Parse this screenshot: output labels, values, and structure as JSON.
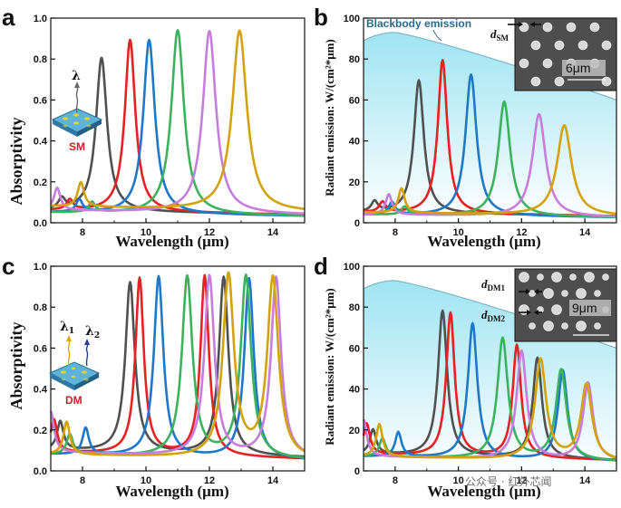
{
  "colors": {
    "series": [
      "#505050",
      "#e52222",
      "#1f77c8",
      "#3bb35c",
      "#c77ddb",
      "#d4a20d"
    ],
    "blackbody_fill": "#bfeef7",
    "blackbody_line": "#7fb6c8"
  },
  "annotations": {
    "blackbody_label": "Blackbody emission",
    "sm_label": "SM",
    "dm_label": "DM",
    "lambda": "λ",
    "lambda1": "λ",
    "lambda1_sub": "1",
    "lambda2": "λ",
    "lambda2_sub": "2",
    "scale_b": "6μm",
    "scale_d": "9μm",
    "d_sm": "d",
    "d_sm_sub": "SM",
    "d_dm1": "d",
    "d_dm1_sub": "DM1",
    "d_dm2": "d",
    "d_dm2_sub": "DM2",
    "watermark": "公众号 · 红外芯闻"
  },
  "chart_data": [
    {
      "id": "a",
      "panel_label": "a",
      "type": "line",
      "xlabel": "Wavelength (μm)",
      "ylabel": "Absorptivity",
      "xlim": [
        7,
        15
      ],
      "ylim": [
        0,
        1.0
      ],
      "xticks": [
        8,
        10,
        12,
        14
      ],
      "yticks": [
        0.0,
        0.2,
        0.4,
        0.6,
        0.8,
        1.0
      ],
      "ytick_labels": [
        "0.0",
        "0.2",
        "0.4",
        "0.6",
        "0.8",
        "1.0"
      ],
      "series": [
        {
          "color": "#505050",
          "peak": 8.6,
          "amp": 0.81,
          "width": 0.42,
          "baseline": 0.06,
          "side_peak": 7.35,
          "side_amp": 0.05
        },
        {
          "color": "#e52222",
          "peak": 9.5,
          "amp": 0.9,
          "width": 0.4,
          "baseline": 0.06,
          "side_peak": 7.6,
          "side_amp": 0.05
        },
        {
          "color": "#1f77c8",
          "peak": 10.1,
          "amp": 0.9,
          "width": 0.44,
          "baseline": 0.05,
          "side_peak": 7.9,
          "side_amp": 0.06
        },
        {
          "color": "#3bb35c",
          "peak": 11.0,
          "amp": 0.95,
          "width": 0.48,
          "baseline": 0.05,
          "side_peak": 8.3,
          "side_amp": 0.05
        },
        {
          "color": "#c77ddb",
          "peak": 12.0,
          "amp": 0.95,
          "width": 0.5,
          "baseline": 0.06,
          "side_peak": 7.2,
          "side_amp": 0.11
        },
        {
          "color": "#d4a20d",
          "peak": 12.95,
          "amp": 0.96,
          "width": 0.55,
          "baseline": 0.08,
          "side_peak": 7.95,
          "side_amp": 0.12
        }
      ]
    },
    {
      "id": "b",
      "panel_label": "b",
      "type": "line",
      "xlabel": "Wavelength (μm)",
      "ylabel": "Radiant emission: W/(cm²*μm)",
      "xlim": [
        7,
        15
      ],
      "ylim": [
        0,
        100
      ],
      "xticks": [
        8,
        10,
        12,
        14
      ],
      "yticks": [
        0,
        20,
        40,
        60,
        80,
        100
      ],
      "ytick_labels": [
        "0",
        "20",
        "40",
        "60",
        "80",
        "100"
      ],
      "blackbody": {
        "peak_wavelength": 8.0,
        "peak_value": 93,
        "end_value": 60
      },
      "series": [
        {
          "color": "#505050",
          "peak": 8.75,
          "amp": 70,
          "width": 0.38,
          "baseline": 5,
          "side_peak": 7.35,
          "side_amp": 5
        },
        {
          "color": "#e52222",
          "peak": 9.5,
          "amp": 80,
          "width": 0.36,
          "baseline": 5,
          "side_peak": 7.6,
          "side_amp": 5
        },
        {
          "color": "#1f77c8",
          "peak": 10.4,
          "amp": 73,
          "width": 0.42,
          "baseline": 4,
          "side_peak": 7.9,
          "side_amp": 6
        },
        {
          "color": "#3bb35c",
          "peak": 11.45,
          "amp": 60,
          "width": 0.45,
          "baseline": 4,
          "side_peak": 8.3,
          "side_amp": 4
        },
        {
          "color": "#c77ddb",
          "peak": 12.55,
          "amp": 54,
          "width": 0.5,
          "baseline": 4,
          "side_peak": 7.8,
          "side_amp": 10
        },
        {
          "color": "#d4a20d",
          "peak": 13.35,
          "amp": 49,
          "width": 0.55,
          "baseline": 5,
          "side_peak": 8.2,
          "side_amp": 12
        }
      ]
    },
    {
      "id": "c",
      "panel_label": "c",
      "type": "line",
      "xlabel": "Wavelength (μm)",
      "ylabel": "Absorptivity",
      "xlim": [
        7,
        15
      ],
      "ylim": [
        0,
        1.0
      ],
      "xticks": [
        8,
        10,
        12,
        14
      ],
      "yticks": [
        0.0,
        0.2,
        0.4,
        0.6,
        0.8,
        1.0
      ],
      "ytick_labels": [
        "0.0",
        "0.2",
        "0.4",
        "0.6",
        "0.8",
        "1.0"
      ],
      "series": [
        {
          "color": "#505050",
          "peaks": [
            9.5,
            12.45
          ],
          "amps": [
            0.93,
            0.97
          ],
          "width": 0.36,
          "baseline": 0.1,
          "side_peak": 7.3,
          "side_amp": 0.14
        },
        {
          "color": "#e52222",
          "peaks": [
            9.8,
            11.85
          ],
          "amps": [
            0.95,
            0.97
          ],
          "width": 0.32,
          "baseline": 0.09,
          "side_peak": 7.1,
          "side_amp": 0.16
        },
        {
          "color": "#1f77c8",
          "peaks": [
            10.4,
            13.25
          ],
          "amps": [
            0.96,
            0.96
          ],
          "width": 0.36,
          "baseline": 0.08,
          "side_peak": 8.1,
          "side_amp": 0.13
        },
        {
          "color": "#3bb35c",
          "peaks": [
            11.3,
            13.15
          ],
          "amps": [
            0.96,
            0.97
          ],
          "width": 0.4,
          "baseline": 0.08,
          "side_peak": 7.6,
          "side_amp": 0.1
        },
        {
          "color": "#c77ddb",
          "peaks": [
            12.0,
            14.1
          ],
          "amps": [
            0.97,
            0.97
          ],
          "width": 0.38,
          "baseline": 0.09,
          "side_peak": 7.0,
          "side_amp": 0.2
        },
        {
          "color": "#d4a20d",
          "peaks": [
            12.6,
            14.0
          ],
          "amps": [
            0.97,
            0.96
          ],
          "width": 0.42,
          "baseline": 0.08,
          "side_peak": 7.5,
          "side_amp": 0.16
        }
      ]
    },
    {
      "id": "d",
      "panel_label": "d",
      "type": "line",
      "xlabel": "Wavelength (μm)",
      "ylabel": "Radiant emission: W/(cm²*μm)",
      "xlim": [
        7,
        15
      ],
      "ylim": [
        0,
        100
      ],
      "xticks": [
        8,
        10,
        12,
        14
      ],
      "yticks": [
        0,
        20,
        40,
        60,
        80,
        100
      ],
      "ytick_labels": [
        "0",
        "20",
        "40",
        "60",
        "80",
        "100"
      ],
      "blackbody": {
        "peak_wavelength": 8.0,
        "peak_value": 93,
        "end_value": 60
      },
      "series": [
        {
          "color": "#505050",
          "peaks": [
            9.5,
            12.5
          ],
          "amps": [
            79,
            57
          ],
          "width": 0.35,
          "baseline": 8,
          "side_peak": 7.3,
          "side_amp": 12
        },
        {
          "color": "#e52222",
          "peaks": [
            9.75,
            11.85
          ],
          "amps": [
            78,
            63
          ],
          "width": 0.32,
          "baseline": 8,
          "side_peak": 7.1,
          "side_amp": 15
        },
        {
          "color": "#1f77c8",
          "peaks": [
            10.45,
            13.3
          ],
          "amps": [
            73,
            51
          ],
          "width": 0.36,
          "baseline": 7,
          "side_peak": 8.1,
          "side_amp": 12
        },
        {
          "color": "#3bb35c",
          "peaks": [
            11.4,
            13.25
          ],
          "amps": [
            66,
            51
          ],
          "width": 0.4,
          "baseline": 7,
          "side_peak": 7.6,
          "side_amp": 9
        },
        {
          "color": "#c77ddb",
          "peaks": [
            12.0,
            14.1
          ],
          "amps": [
            60,
            45
          ],
          "width": 0.38,
          "baseline": 7,
          "side_peak": 7.0,
          "side_amp": 18
        },
        {
          "color": "#d4a20d",
          "peaks": [
            12.6,
            14.05
          ],
          "amps": [
            56,
            44
          ],
          "width": 0.42,
          "baseline": 7,
          "side_peak": 7.5,
          "side_amp": 16
        }
      ]
    }
  ]
}
